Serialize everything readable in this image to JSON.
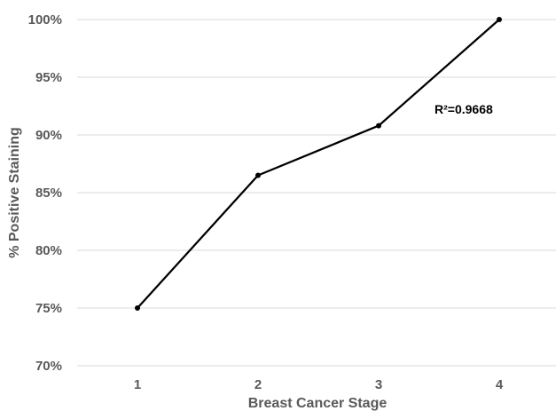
{
  "chart_data": {
    "type": "line",
    "title": "",
    "xlabel": "Breast Cancer Stage",
    "ylabel": "% Positive Staining",
    "categories": [
      "1",
      "2",
      "3",
      "4"
    ],
    "series": [
      {
        "values": [
          75,
          86.5,
          90.8,
          100
        ]
      }
    ],
    "ylim": [
      70,
      100
    ],
    "yticks": [
      70,
      75,
      80,
      85,
      90,
      95,
      100
    ],
    "ytick_labels": [
      "70%",
      "75%",
      "80%",
      "85%",
      "90%",
      "95%",
      "100%"
    ],
    "grid": "horizontal",
    "annotation": "R²=0.9668",
    "colors": {
      "line": "#000000",
      "grid": "#d9d9d9",
      "text": "#595959"
    }
  }
}
